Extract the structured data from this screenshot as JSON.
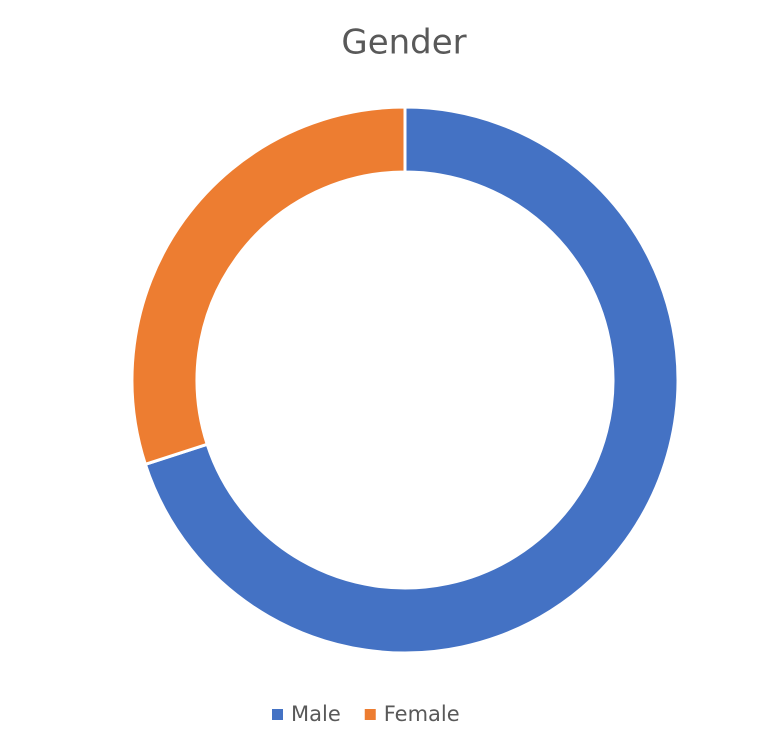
{
  "chart_data": {
    "type": "donut",
    "title": "Gender",
    "categories": [
      "Male",
      "Female"
    ],
    "values": [
      70,
      30
    ],
    "colors": [
      "#4472c4",
      "#ed7d31"
    ],
    "legend": "bottom"
  }
}
